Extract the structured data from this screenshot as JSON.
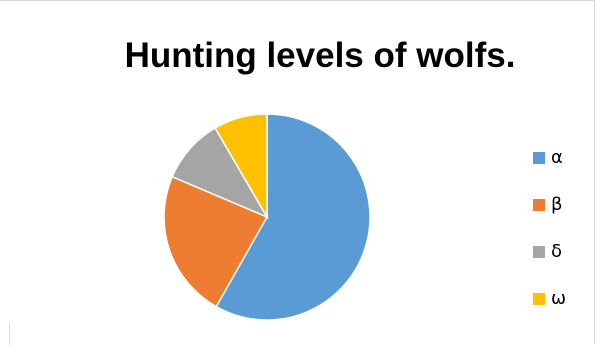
{
  "chart_data": {
    "type": "pie",
    "title": "Hunting levels of wolfs.",
    "categories": [
      "α",
      "β",
      "δ",
      "ω"
    ],
    "values": [
      58.2,
      23.2,
      10.2,
      8.4
    ],
    "colors": [
      "#5b9bd5",
      "#ed7d31",
      "#a5a5a5",
      "#ffc000"
    ],
    "legend_position": "right"
  }
}
